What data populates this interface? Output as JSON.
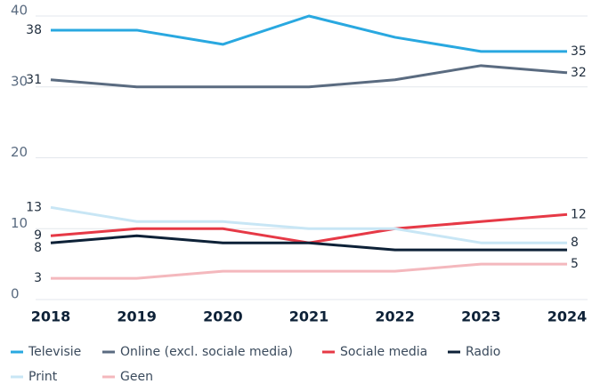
{
  "chart_data": {
    "type": "line",
    "categories": [
      "2018",
      "2019",
      "2020",
      "2021",
      "2022",
      "2023",
      "2024"
    ],
    "ylim": [
      0,
      40
    ],
    "yticks": [
      0,
      10,
      20,
      30,
      40
    ],
    "grid": true,
    "series": [
      {
        "name": "Televisie",
        "color": "#29a8e0",
        "values": [
          38,
          38,
          36,
          40,
          37,
          35,
          35
        ],
        "value_labels": [
          "38",
          null,
          null,
          null,
          null,
          null,
          "35"
        ]
      },
      {
        "name": "Online (excl. sociale media)",
        "color": "#5a6b80",
        "values": [
          31,
          30,
          30,
          30,
          31,
          33,
          32
        ],
        "value_labels": [
          "31",
          null,
          null,
          null,
          null,
          null,
          "32"
        ]
      },
      {
        "name": "Sociale media",
        "color": "#e63946",
        "values": [
          9,
          10,
          10,
          8,
          10,
          11,
          12
        ],
        "value_labels": [
          "9",
          null,
          null,
          null,
          null,
          null,
          "12"
        ]
      },
      {
        "name": "Radio",
        "color": "#0d2137",
        "values": [
          8,
          9,
          8,
          8,
          7,
          7,
          7
        ],
        "value_labels": [
          "8",
          null,
          null,
          null,
          null,
          null,
          null
        ]
      },
      {
        "name": "Print",
        "color": "#c8e6f5",
        "values": [
          13,
          11,
          11,
          10,
          10,
          8,
          8
        ],
        "value_labels": [
          "13",
          null,
          null,
          null,
          null,
          null,
          "8"
        ]
      },
      {
        "name": "Geen",
        "color": "#f4b8bd",
        "values": [
          3,
          3,
          4,
          4,
          4,
          5,
          5
        ],
        "value_labels": [
          "3",
          null,
          null,
          null,
          null,
          null,
          "5"
        ]
      }
    ]
  }
}
